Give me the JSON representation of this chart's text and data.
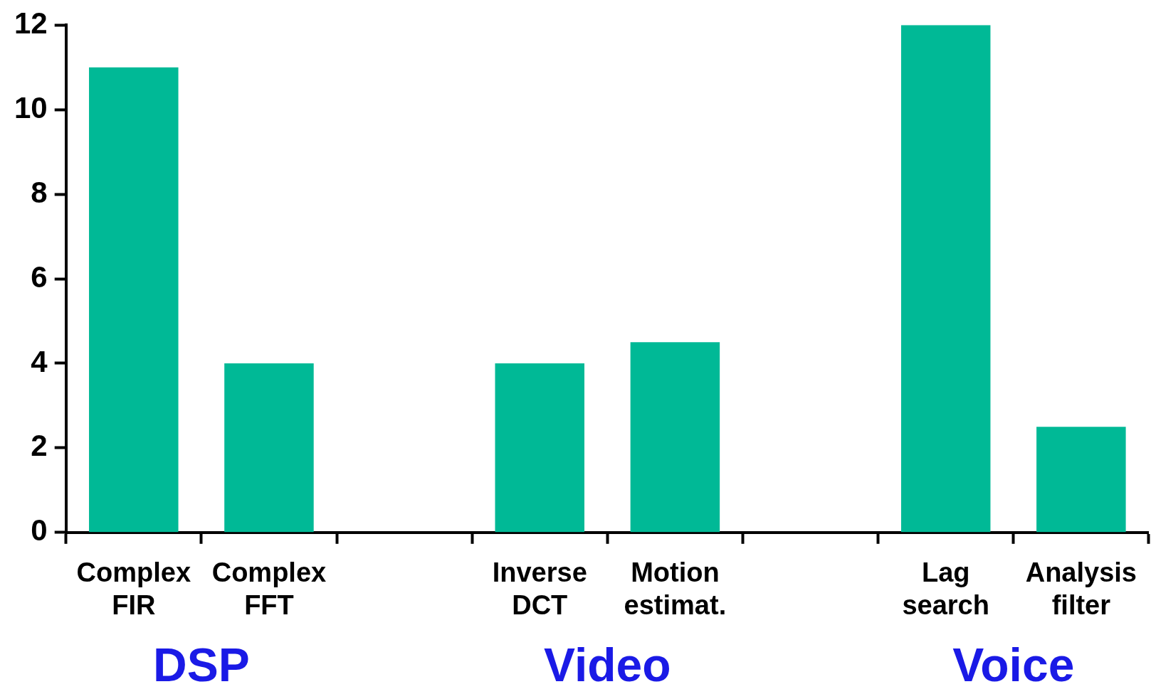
{
  "chart_data": {
    "type": "bar",
    "categories": [
      "Complex FIR",
      "Complex FFT",
      null,
      "Inverse DCT",
      "Motion estimat.",
      null,
      "Lag search",
      "Analysis filter"
    ],
    "values": [
      11,
      4,
      null,
      4,
      4.5,
      null,
      12,
      2.5
    ],
    "color": "#00b996",
    "ylim": [
      0,
      12
    ],
    "yticks": [
      0,
      2,
      4,
      6,
      8,
      10,
      12
    ],
    "grid": false,
    "legend": false,
    "annotations": [
      "DSP",
      "Video",
      "Voice"
    ]
  }
}
